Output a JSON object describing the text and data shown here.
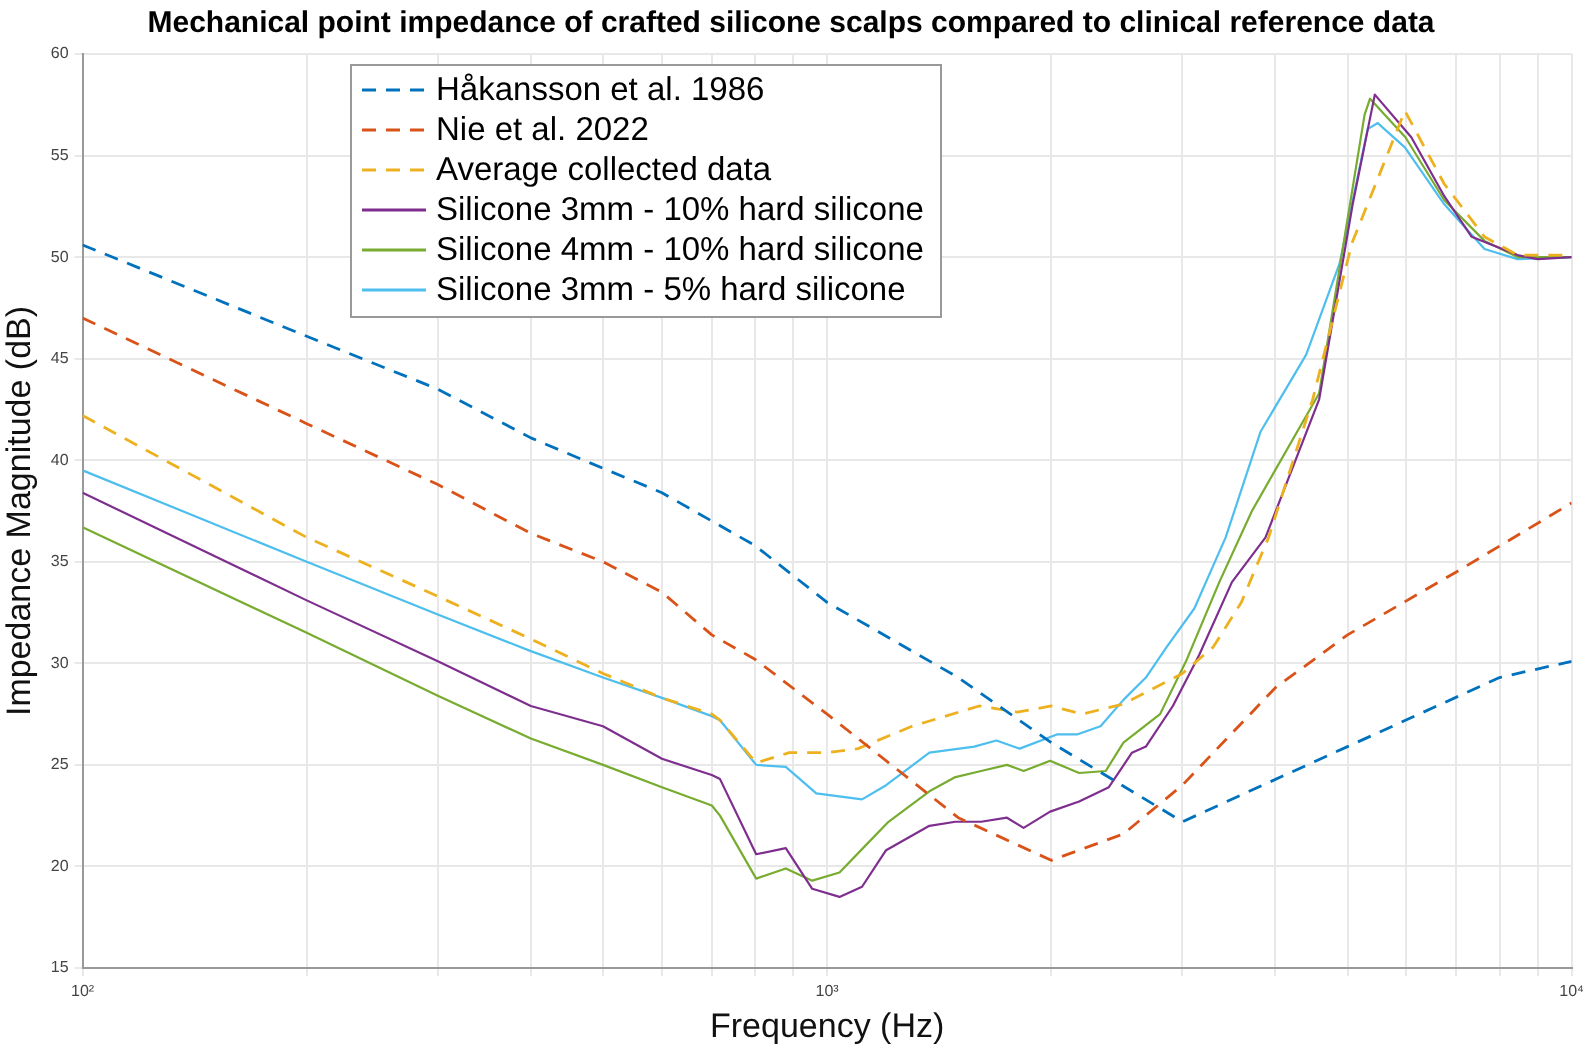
{
  "chart_data": {
    "type": "line",
    "title": "Mechanical point impedance of crafted silicone scalps compared to clinical reference data",
    "xlabel": "Frequency (Hz)",
    "ylabel": "Impedance Magnitude (dB)",
    "log": "x",
    "grid": true,
    "legend": "top left",
    "marker": "none",
    "xlim": [
      100,
      10000
    ],
    "xticks": [
      {
        "value": 100,
        "label": "10²"
      },
      {
        "value": 200,
        "label": null
      },
      {
        "value": 300,
        "label": null
      },
      {
        "value": 400,
        "label": null
      },
      {
        "value": 500,
        "label": null
      },
      {
        "value": 600,
        "label": null
      },
      {
        "value": 700,
        "label": null
      },
      {
        "value": 800,
        "label": null
      },
      {
        "value": 900,
        "label": null
      },
      {
        "value": 1000,
        "label": "10³"
      },
      {
        "value": 2000,
        "label": null
      },
      {
        "value": 3000,
        "label": null
      },
      {
        "value": 4000,
        "label": null
      },
      {
        "value": 5000,
        "label": null
      },
      {
        "value": 6000,
        "label": null
      },
      {
        "value": 7000,
        "label": null
      },
      {
        "value": 8000,
        "label": null
      },
      {
        "value": 9000,
        "label": null
      },
      {
        "value": 10000,
        "label": "10⁴"
      }
    ],
    "ylim": [
      15,
      60
    ],
    "yticks": [
      15,
      20,
      25,
      30,
      35,
      40,
      45,
      50,
      55,
      60
    ],
    "series": [
      {
        "name": "Håkansson et al. 1986",
        "color": "#0072bd",
        "line_style": "dashed",
        "x": [
          100,
          200,
          300,
          400,
          500,
          600,
          800,
          1000,
          1500,
          2000,
          3000,
          5000,
          8000,
          10000
        ],
        "values": [
          50.6,
          46.1,
          43.5,
          41.1,
          39.6,
          38.4,
          35.8,
          33.0,
          29.3,
          26.1,
          22.2,
          25.9,
          29.3,
          30.1
        ]
      },
      {
        "name": "Nie et al. 2022",
        "color": "#d95319",
        "line_style": "dashed",
        "x": [
          100,
          200,
          300,
          400,
          500,
          600,
          700,
          800,
          1000,
          1500,
          2000,
          2500,
          3000,
          4000,
          5000,
          7000,
          10000
        ],
        "values": [
          47.0,
          41.8,
          38.8,
          36.4,
          35.0,
          33.5,
          31.4,
          30.2,
          27.5,
          22.4,
          20.3,
          21.6,
          24.0,
          28.8,
          31.4,
          34.5,
          37.9
        ]
      },
      {
        "name": "Average collected data",
        "color": "#edb120",
        "line_style": "dashed",
        "x": [
          100,
          200,
          300,
          400,
          500,
          600,
          700,
          718,
          803,
          889,
          1000,
          1100,
          1300,
          1600,
          1800,
          2000,
          2200,
          2500,
          3000,
          3300,
          3600,
          3917,
          4490,
          5070,
          5970,
          6744,
          7637,
          8458,
          10000
        ],
        "values": [
          42.2,
          36.2,
          33.3,
          31.2,
          29.5,
          28.3,
          27.5,
          27.2,
          25.1,
          25.6,
          25.6,
          25.8,
          26.9,
          27.9,
          27.6,
          27.9,
          27.5,
          28.0,
          29.5,
          30.8,
          33.0,
          36.2,
          43.0,
          50.7,
          57.2,
          53.6,
          51.0,
          50.1,
          50.1
        ]
      },
      {
        "name": "Silicone 3mm - 10% hard silicone",
        "color": "#7e2f8e",
        "line_style": "solid",
        "x": [
          100,
          200,
          300,
          400,
          500,
          600,
          700,
          718,
          803,
          880,
          955,
          1039,
          1114,
          1200,
          1372,
          1487,
          1610,
          1744,
          1836,
          1993,
          2180,
          2390,
          2567,
          2680,
          2913,
          3159,
          3497,
          3880,
          4580,
          5080,
          5440,
          6090,
          6744,
          7340,
          8458,
          9000,
          10000
        ],
        "values": [
          38.4,
          33.1,
          30.1,
          27.9,
          26.9,
          25.3,
          24.5,
          24.3,
          20.6,
          20.9,
          18.9,
          18.5,
          19.0,
          20.8,
          22.0,
          22.2,
          22.2,
          22.4,
          21.9,
          22.7,
          23.2,
          23.9,
          25.6,
          25.9,
          27.9,
          30.4,
          34.0,
          36.2,
          43.0,
          52.6,
          58.0,
          55.9,
          53.0,
          51.0,
          50.1,
          49.9,
          50.0
        ]
      },
      {
        "name": "Silicone 4mm - 10% hard silicone",
        "color": "#77ac30",
        "line_style": "solid",
        "x": [
          100,
          200,
          300,
          400,
          500,
          600,
          700,
          718,
          803,
          880,
          955,
          1039,
          1124,
          1209,
          1372,
          1487,
          1610,
          1744,
          1836,
          1993,
          2180,
          2367,
          2500,
          2800,
          3034,
          3363,
          3720,
          4580,
          5270,
          5360,
          5980,
          6744,
          7637,
          8458,
          10000
        ],
        "values": [
          36.7,
          31.5,
          28.4,
          26.3,
          25.0,
          23.9,
          23.0,
          22.5,
          19.4,
          19.9,
          19.3,
          19.7,
          21.0,
          22.2,
          23.7,
          24.4,
          24.7,
          25.0,
          24.7,
          25.2,
          24.6,
          24.7,
          26.1,
          27.5,
          30.1,
          34.0,
          37.5,
          43.3,
          57.0,
          57.8,
          55.9,
          52.8,
          50.8,
          50.0,
          50.0
        ]
      },
      {
        "name": "Silicone 3mm - 5% hard silicone",
        "color": "#4dbeee",
        "line_style": "solid",
        "x": [
          100,
          200,
          300,
          400,
          500,
          600,
          700,
          718,
          803,
          880,
          967,
          1114,
          1200,
          1372,
          1576,
          1688,
          1814,
          2035,
          2166,
          2329,
          2500,
          2680,
          2857,
          3113,
          3430,
          3820,
          4400,
          4880,
          5320,
          5490,
          5970,
          6744,
          7637,
          8458,
          10000
        ],
        "values": [
          39.5,
          35.0,
          32.4,
          30.6,
          29.3,
          28.3,
          27.4,
          27.2,
          25.0,
          24.9,
          23.6,
          23.3,
          24.0,
          25.6,
          25.9,
          26.2,
          25.8,
          26.5,
          26.5,
          26.9,
          28.2,
          29.3,
          30.8,
          32.7,
          36.2,
          41.4,
          45.2,
          49.7,
          56.3,
          56.6,
          55.4,
          52.6,
          50.4,
          49.9,
          50.0
        ]
      }
    ]
  }
}
